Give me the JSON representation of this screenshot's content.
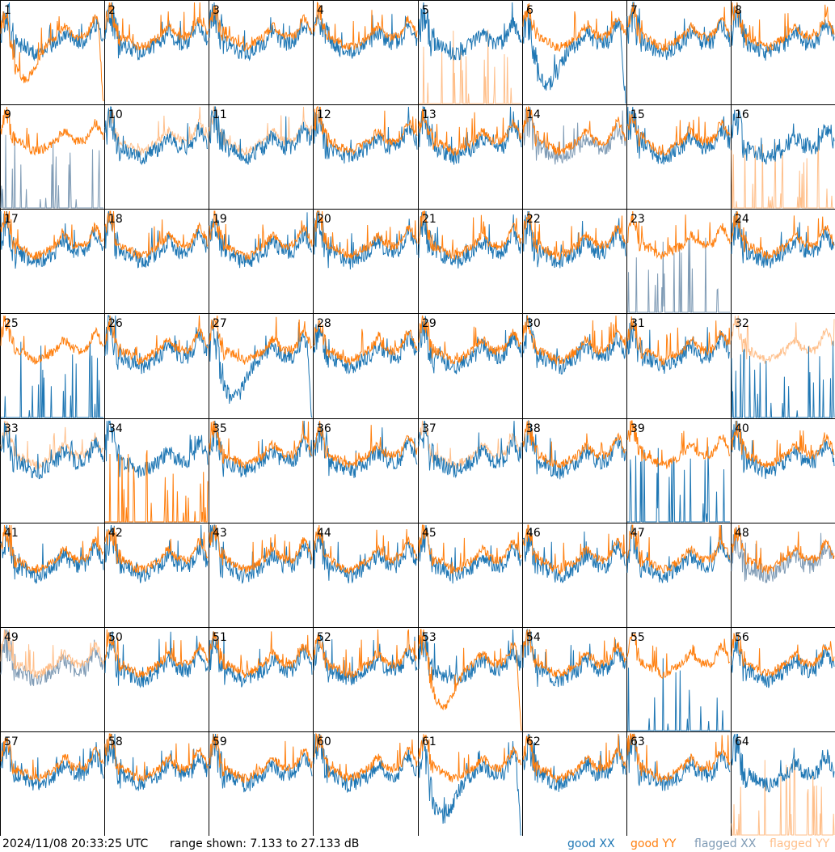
{
  "chart_data": {
    "type": "line",
    "layout_desc": "8x8 grid of per-antenna spectra",
    "tiles": [
      {
        "id": 1,
        "xx": "good",
        "yy": "good",
        "yy_dip": true
      },
      {
        "id": 2,
        "xx": "good",
        "yy": "good"
      },
      {
        "id": 3,
        "xx": "good",
        "yy": "good"
      },
      {
        "id": 4,
        "xx": "good",
        "yy": "good"
      },
      {
        "id": 5,
        "xx": "good",
        "yy": "flagged-spikes"
      },
      {
        "id": 6,
        "xx": "good",
        "yy": "good",
        "xx_dip": true
      },
      {
        "id": 7,
        "xx": "good",
        "yy": "good"
      },
      {
        "id": 8,
        "xx": "good",
        "yy": "good"
      },
      {
        "id": 9,
        "xx": "flagged-spikes",
        "yy": "good"
      },
      {
        "id": 10,
        "xx": "good",
        "yy": "flagged"
      },
      {
        "id": 11,
        "xx": "good",
        "yy": "flagged"
      },
      {
        "id": 12,
        "xx": "good",
        "yy": "good"
      },
      {
        "id": 13,
        "xx": "good",
        "yy": "good"
      },
      {
        "id": 14,
        "xx": "flagged",
        "yy": "good"
      },
      {
        "id": 15,
        "xx": "good",
        "yy": "good"
      },
      {
        "id": 16,
        "xx": "good",
        "yy": "flagged-spikes"
      },
      {
        "id": 17,
        "xx": "good",
        "yy": "good"
      },
      {
        "id": 18,
        "xx": "good",
        "yy": "good"
      },
      {
        "id": 19,
        "xx": "good",
        "yy": "good"
      },
      {
        "id": 20,
        "xx": "good",
        "yy": "good"
      },
      {
        "id": 21,
        "xx": "good",
        "yy": "good"
      },
      {
        "id": 22,
        "xx": "good",
        "yy": "good"
      },
      {
        "id": 23,
        "xx": "flagged-spikes",
        "yy": "good"
      },
      {
        "id": 24,
        "xx": "good",
        "yy": "good"
      },
      {
        "id": 25,
        "xx": "good-spikes",
        "yy": "good"
      },
      {
        "id": 26,
        "xx": "good",
        "yy": "good"
      },
      {
        "id": 27,
        "xx": "good",
        "yy": "good",
        "xx_dip": true
      },
      {
        "id": 28,
        "xx": "good",
        "yy": "good"
      },
      {
        "id": 29,
        "xx": "good",
        "yy": "good"
      },
      {
        "id": 30,
        "xx": "good",
        "yy": "good"
      },
      {
        "id": 31,
        "xx": "good",
        "yy": "good"
      },
      {
        "id": 32,
        "xx": "good-spikes",
        "yy": "flagged"
      },
      {
        "id": 33,
        "xx": "good",
        "yy": "flagged"
      },
      {
        "id": 34,
        "xx": "good",
        "yy": "good-spikes"
      },
      {
        "id": 35,
        "xx": "good",
        "yy": "good"
      },
      {
        "id": 36,
        "xx": "good",
        "yy": "good"
      },
      {
        "id": 37,
        "xx": "good",
        "yy": "flagged"
      },
      {
        "id": 38,
        "xx": "good",
        "yy": "good"
      },
      {
        "id": 39,
        "xx": "good-spikes",
        "yy": "good"
      },
      {
        "id": 40,
        "xx": "good",
        "yy": "good"
      },
      {
        "id": 41,
        "xx": "good",
        "yy": "good"
      },
      {
        "id": 42,
        "xx": "good",
        "yy": "good"
      },
      {
        "id": 43,
        "xx": "good",
        "yy": "good"
      },
      {
        "id": 44,
        "xx": "good",
        "yy": "good"
      },
      {
        "id": 45,
        "xx": "good",
        "yy": "good"
      },
      {
        "id": 46,
        "xx": "good",
        "yy": "good"
      },
      {
        "id": 47,
        "xx": "good",
        "yy": "good"
      },
      {
        "id": 48,
        "xx": "flagged",
        "yy": "good"
      },
      {
        "id": 49,
        "xx": "flagged",
        "yy": "flagged"
      },
      {
        "id": 50,
        "xx": "good",
        "yy": "good"
      },
      {
        "id": 51,
        "xx": "good",
        "yy": "good"
      },
      {
        "id": 52,
        "xx": "good",
        "yy": "good"
      },
      {
        "id": 53,
        "xx": "good",
        "yy": "good",
        "yy_dip": true
      },
      {
        "id": 54,
        "xx": "good",
        "yy": "good"
      },
      {
        "id": 55,
        "xx": "good-spikes",
        "yy": "good"
      },
      {
        "id": 56,
        "xx": "good",
        "yy": "good"
      },
      {
        "id": 57,
        "xx": "good",
        "yy": "good"
      },
      {
        "id": 58,
        "xx": "good",
        "yy": "good"
      },
      {
        "id": 59,
        "xx": "good",
        "yy": "good"
      },
      {
        "id": 60,
        "xx": "good",
        "yy": "good"
      },
      {
        "id": 61,
        "xx": "good",
        "yy": "good",
        "xx_dip": true
      },
      {
        "id": 62,
        "xx": "good",
        "yy": "good"
      },
      {
        "id": 63,
        "xx": "good",
        "yy": "good"
      },
      {
        "id": 64,
        "xx": "good",
        "yy": "flagged-spikes"
      }
    ],
    "colors": {
      "good_xx": "#1f77b4",
      "good_yy": "#ff7f0e",
      "flagged_xx": "#7f9bb5",
      "flagged_yy": "#ffbf8a"
    },
    "ylim": [
      7.133,
      27.133
    ],
    "grid": "off"
  },
  "footer": {
    "timestamp": "2024/11/08 20:33:25 UTC",
    "range_text": "range shown: 7.133 to 27.133 dB",
    "legend": {
      "good_xx": "good XX",
      "good_yy": "good YY",
      "flagged_xx": "flagged XX",
      "flagged_yy": "flagged YY"
    }
  }
}
